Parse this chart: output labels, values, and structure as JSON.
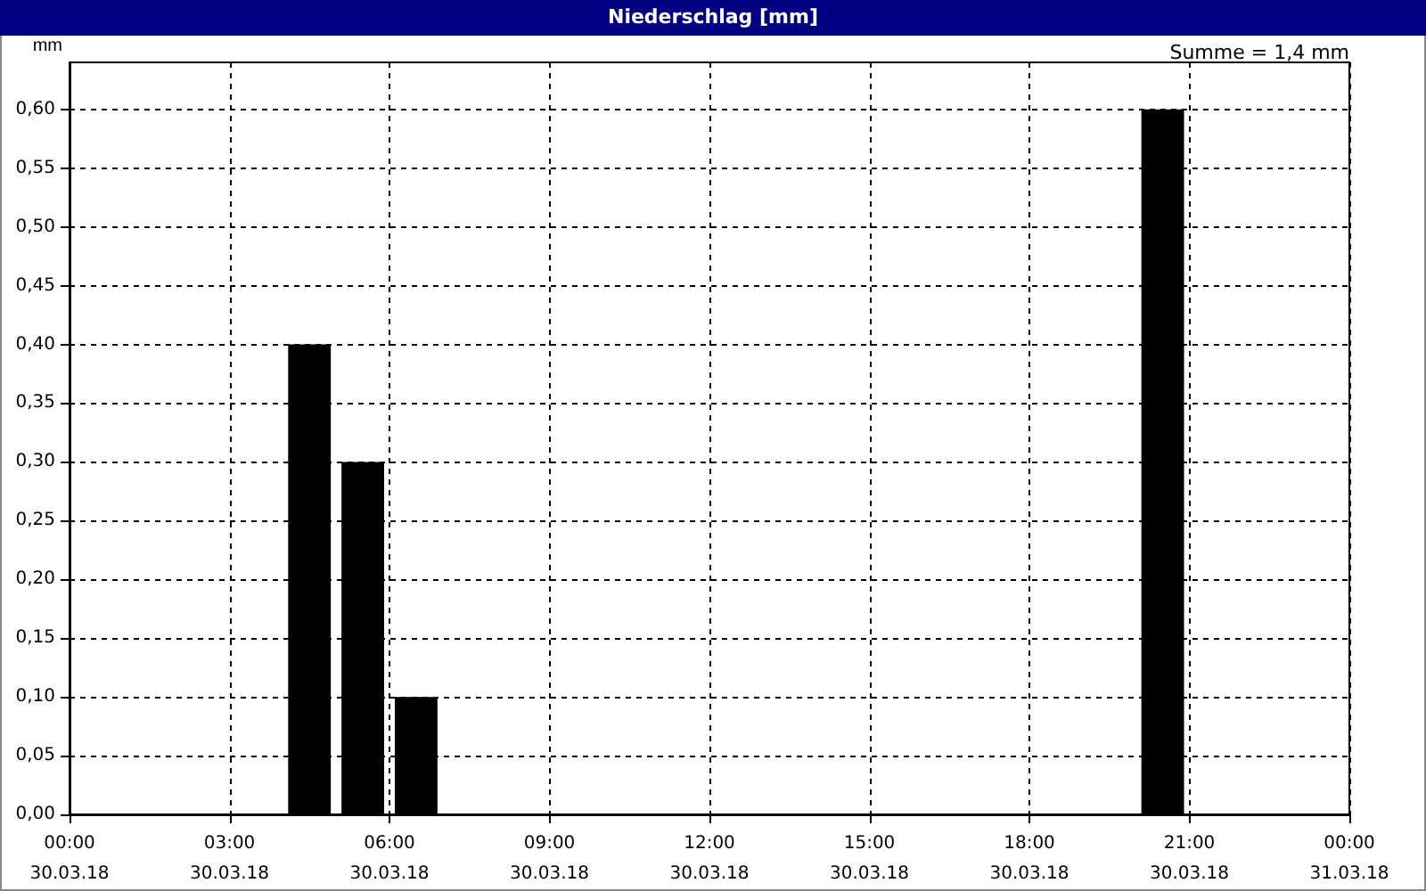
{
  "chart_data": {
    "type": "bar",
    "title": "Niederschlag [mm]",
    "ylabel": "mm",
    "annotations": [
      "Summe = 1,4 mm"
    ],
    "x": [
      "--03-30T04:30",
      "--03-30T05:30",
      "--03-30T06:30",
      "--03-30T20:30"
    ],
    "values": [
      0.4,
      0.3,
      0.1,
      0.6
    ],
    "color": "#000000",
    "xlim": [
      "--03-30T00:00",
      "--03-31T00:00"
    ],
    "xticks": [
      {
        "value": "--03-30T00:00",
        "label": "00:00\n30.03.18"
      },
      {
        "value": "--03-30T03:00",
        "label": "03:00\n30.03.18"
      },
      {
        "value": "--03-30T06:00",
        "label": "06:00\n30.03.18"
      },
      {
        "value": "--03-30T09:00",
        "label": "09:00\n30.03.18"
      },
      {
        "value": "--03-30T12:00",
        "label": "12:00\n30.03.18"
      },
      {
        "value": "--03-30T15:00",
        "label": "15:00\n30.03.18"
      },
      {
        "value": "--03-30T18:00",
        "label": "18:00\n30.03.18"
      },
      {
        "value": "--03-30T21:00",
        "label": "21:00\n30.03.18"
      },
      {
        "value": "--03-31T00:00",
        "label": "00:00\n31.03.18"
      }
    ],
    "ylim": [
      0,
      0.64
    ],
    "yticks": [
      {
        "value": 0,
        "label": "0,00"
      },
      {
        "value": 0.05,
        "label": "0,05"
      },
      {
        "value": 0.1,
        "label": "0,10"
      },
      {
        "value": 0.15,
        "label": "0,15"
      },
      {
        "value": 0.2,
        "label": "0,20"
      },
      {
        "value": 0.25,
        "label": "0,25"
      },
      {
        "value": 0.3,
        "label": "0,30"
      },
      {
        "value": 0.35,
        "label": "0,35"
      },
      {
        "value": 0.4,
        "label": "0,40"
      },
      {
        "value": 0.45,
        "label": "0,45"
      },
      {
        "value": 0.5,
        "label": "0,50"
      },
      {
        "value": 0.55,
        "label": "0,55"
      },
      {
        "value": 0.6,
        "label": "0,60"
      }
    ],
    "grid": true
  }
}
